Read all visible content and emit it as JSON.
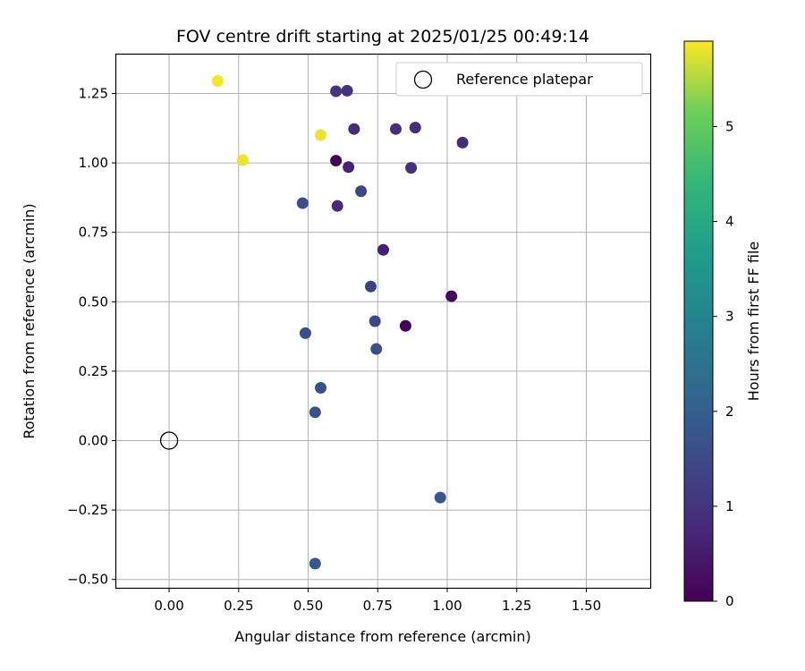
{
  "chart_data": {
    "type": "scatter",
    "title": "FOV centre drift starting at 2025/01/25 00:49:14",
    "xlabel": "Angular distance from reference (arcmin)",
    "ylabel": "Rotation from reference (arcmin)",
    "xlim": [
      -0.19,
      1.73
    ],
    "ylim": [
      -0.53,
      1.39
    ],
    "x_ticks": [
      "0.00",
      "0.25",
      "0.50",
      "0.75",
      "1.00",
      "1.25",
      "1.50"
    ],
    "x_tick_values": [
      0,
      0.25,
      0.5,
      0.75,
      1.0,
      1.25,
      1.5
    ],
    "y_ticks": [
      "−0.50",
      "−0.25",
      "0.00",
      "0.25",
      "0.50",
      "0.75",
      "1.00",
      "1.25"
    ],
    "y_tick_values": [
      -0.5,
      -0.25,
      0,
      0.25,
      0.5,
      0.75,
      1.0,
      1.25
    ],
    "grid": true,
    "legend": {
      "placement": "top-right",
      "entries": [
        "Reference platepar"
      ]
    },
    "reference_point": {
      "x": 0.0,
      "y": 0.0
    },
    "colorbar": {
      "label": "Hours from first FF file",
      "min": 0,
      "max": 5.9,
      "ticks": [
        "0",
        "1",
        "2",
        "3",
        "4",
        "5"
      ],
      "tick_values": [
        0,
        1,
        2,
        3,
        4,
        5
      ],
      "colormap": "viridis"
    },
    "points": [
      {
        "x": 0.175,
        "y": 1.295,
        "hours": 5.85
      },
      {
        "x": 0.265,
        "y": 1.01,
        "hours": 5.8
      },
      {
        "x": 0.545,
        "y": 1.1,
        "hours": 5.8
      },
      {
        "x": 0.6,
        "y": 1.258,
        "hours": 1.0
      },
      {
        "x": 0.64,
        "y": 1.26,
        "hours": 1.0
      },
      {
        "x": 0.665,
        "y": 1.122,
        "hours": 0.8
      },
      {
        "x": 0.815,
        "y": 1.122,
        "hours": 0.9
      },
      {
        "x": 0.885,
        "y": 1.127,
        "hours": 0.9
      },
      {
        "x": 1.055,
        "y": 1.073,
        "hours": 0.8
      },
      {
        "x": 0.6,
        "y": 1.008,
        "hours": 0.05
      },
      {
        "x": 0.645,
        "y": 0.985,
        "hours": 0.65
      },
      {
        "x": 0.87,
        "y": 0.982,
        "hours": 0.9
      },
      {
        "x": 0.69,
        "y": 0.898,
        "hours": 1.4
      },
      {
        "x": 0.48,
        "y": 0.855,
        "hours": 1.6
      },
      {
        "x": 0.605,
        "y": 0.845,
        "hours": 0.75
      },
      {
        "x": 0.77,
        "y": 0.687,
        "hours": 0.6
      },
      {
        "x": 0.725,
        "y": 0.555,
        "hours": 1.3
      },
      {
        "x": 1.015,
        "y": 0.52,
        "hours": 0.1
      },
      {
        "x": 0.74,
        "y": 0.43,
        "hours": 1.45
      },
      {
        "x": 0.85,
        "y": 0.413,
        "hours": 0.05
      },
      {
        "x": 0.49,
        "y": 0.387,
        "hours": 1.6
      },
      {
        "x": 0.745,
        "y": 0.33,
        "hours": 1.6
      },
      {
        "x": 0.545,
        "y": 0.19,
        "hours": 1.6
      },
      {
        "x": 0.525,
        "y": 0.102,
        "hours": 1.7
      },
      {
        "x": 0.975,
        "y": -0.205,
        "hours": 1.8
      },
      {
        "x": 0.525,
        "y": -0.443,
        "hours": 1.8
      }
    ]
  }
}
